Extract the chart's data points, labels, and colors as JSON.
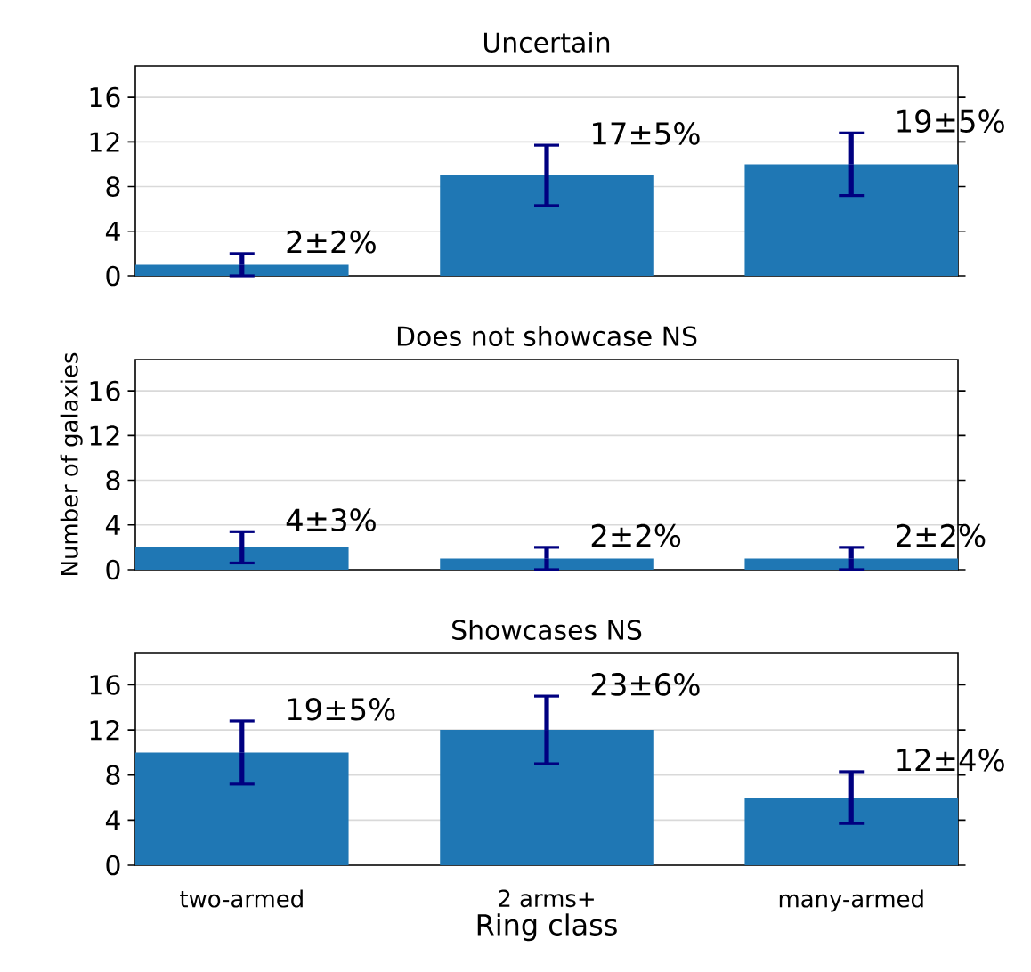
{
  "chart_data": [
    {
      "type": "bar",
      "title": "Uncertain",
      "values": [
        1,
        9,
        10
      ],
      "errors": [
        1,
        2.7,
        2.8
      ],
      "color": "#1f77b4",
      "ylim": [
        0,
        18.8
      ],
      "yticks": [
        0,
        4,
        8,
        12,
        16
      ],
      "grid": "y",
      "tick_labels": "y",
      "annotations": [
        "2±2%",
        "17±5%",
        "19±5%"
      ]
    },
    {
      "type": "bar",
      "title": "Does not showcase NS",
      "ylabel": "Number of galaxies",
      "values": [
        2,
        1,
        1
      ],
      "errors": [
        1.4,
        1,
        1
      ],
      "color": "#1f77b4",
      "ylim": [
        0,
        18.8
      ],
      "yticks": [
        0,
        4,
        8,
        12,
        16
      ],
      "grid": "y",
      "tick_labels": "y",
      "annotations": [
        "4±3%",
        "2±2%",
        "2±2%"
      ]
    },
    {
      "type": "bar",
      "title": "Showcases NS",
      "xlabel": "Ring class",
      "categories": [
        "two-armed",
        "2 arms+",
        "many-armed"
      ],
      "values": [
        10,
        12,
        6
      ],
      "errors": [
        2.8,
        3,
        2.3
      ],
      "color": "#1f77b4",
      "ylim": [
        0,
        18.8
      ],
      "yticks": [
        0,
        4,
        8,
        12,
        16
      ],
      "grid": "y",
      "annotations": [
        "19±5%",
        "23±6%",
        "12±4%"
      ]
    }
  ]
}
